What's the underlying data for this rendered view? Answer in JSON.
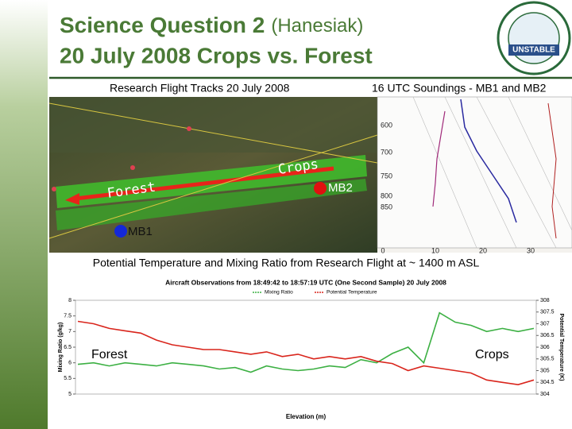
{
  "header": {
    "title_bold": "Science Question 2",
    "title_paren": "(Hanesiak)",
    "subtitle": "20 July 2008 Crops vs. Forest",
    "logo": "UNSTABLE"
  },
  "panels": {
    "left_heading": "Research Flight Tracks 20 July 2008",
    "right_heading": "16 UTC Soundings - MB1 and MB2"
  },
  "map": {
    "crops": "Crops",
    "forest": "Forest",
    "mb2": "MB2",
    "mb1": "MB1"
  },
  "sounding": {
    "pressures": [
      600,
      700,
      750,
      800,
      850
    ],
    "temps": [
      0,
      10,
      20,
      30
    ]
  },
  "caption": "Potential Temperature and Mixing Ratio from Research Flight at ~ 1400 m ASL",
  "chart_data": {
    "type": "line",
    "title": "Aircraft Observations from 18:49:42 to 18:57:19 UTC (One Second Sample) 20 July 2008",
    "x_label": "Elevation (m)",
    "y_label": "Mixing Ratio (g/kg)",
    "y2_label": "Potential Temperature (K)",
    "annotations": [
      "Forest",
      "Crops"
    ],
    "ylim": [
      5,
      8
    ],
    "yticks": [
      5,
      5.5,
      6,
      6.5,
      7,
      7.5,
      8
    ],
    "y2lim": [
      304,
      308
    ],
    "y2ticks": [
      304,
      304.5,
      305,
      305.5,
      306,
      306.5,
      307,
      307.5,
      308
    ],
    "series": [
      {
        "name": "Mixing Ratio",
        "color": "#3cb043",
        "values": [
          5.95,
          6.0,
          5.9,
          6.0,
          5.95,
          5.9,
          6.0,
          5.95,
          5.9,
          5.8,
          5.85,
          5.7,
          5.9,
          5.8,
          5.75,
          5.8,
          5.9,
          5.85,
          6.1,
          6.0,
          6.3,
          6.5,
          6.0,
          7.6,
          7.3,
          7.2,
          7.0,
          7.1,
          7.0,
          7.1
        ]
      },
      {
        "name": "Potential Temperature",
        "color": "#d9251c",
        "axis": "y2",
        "values": [
          307.1,
          307.0,
          306.8,
          306.7,
          306.6,
          306.3,
          306.1,
          306.0,
          305.9,
          305.9,
          305.8,
          305.7,
          305.8,
          305.6,
          305.7,
          305.5,
          305.6,
          305.5,
          305.6,
          305.4,
          305.3,
          305.0,
          305.2,
          305.1,
          305.0,
          304.9,
          304.6,
          304.5,
          304.4,
          304.6
        ]
      }
    ]
  }
}
